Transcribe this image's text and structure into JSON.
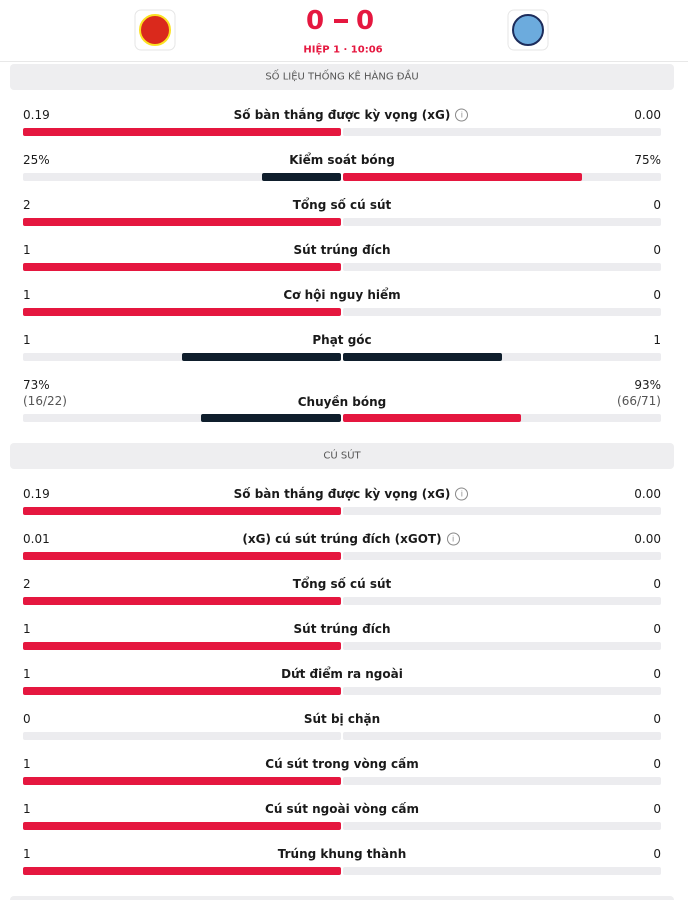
{
  "header": {
    "home_score": 0,
    "away_score": 0,
    "status": "HIỆP 1 · 10:06"
  },
  "colors": {
    "leading": "#e5173f",
    "other": "#0f1e2c",
    "track": "#ececef"
  },
  "sections": [
    {
      "title": "SỐ LIỆU THỐNG KÊ HÀNG ĐẦU",
      "rows": [
        {
          "name": "Số bàn thắng được kỳ vọng (xG)",
          "info": true,
          "home": 0.19,
          "away": {
            "value": 0,
            "label": "0.00"
          }
        },
        {
          "name": "Kiểm soát bóng",
          "home": {
            "value": 25,
            "label": "25%"
          },
          "away": {
            "value": 75,
            "label": "75%"
          }
        },
        {
          "name": "Tổng số cú sút",
          "home": 2,
          "away": 0
        },
        {
          "name": "Sút trúng đích",
          "home": 1,
          "away": 0
        },
        {
          "name": "Cơ hội nguy hiểm",
          "home": 1,
          "away": 0
        },
        {
          "name": "Phạt góc",
          "home": 1,
          "away": 1
        },
        {
          "name": "Chuyền bóng",
          "home": {
            "value": 73,
            "label": "73%"
          },
          "home_detail": "(16/22)",
          "away": {
            "value": 93,
            "label": "93%"
          },
          "away_detail": "(66/71)"
        }
      ]
    },
    {
      "title": "CÚ SÚT",
      "rows": [
        {
          "name": "Số bàn thắng được kỳ vọng (xG)",
          "info": true,
          "home": 0.19,
          "away": {
            "value": 0,
            "label": "0.00"
          }
        },
        {
          "name": "(xG) cú sút trúng đích (xGOT)",
          "info": true,
          "home": 0.01,
          "away": {
            "value": 0,
            "label": "0.00"
          }
        },
        {
          "name": "Tổng số cú sút",
          "home": 2,
          "away": 0
        },
        {
          "name": "Sút trúng đích",
          "home": 1,
          "away": 0
        },
        {
          "name": "Dứt điểm ra ngoài",
          "home": 1,
          "away": 0
        },
        {
          "name": "Sút bị chặn",
          "home": 0,
          "away": 0
        },
        {
          "name": "Cú sút trong vòng cấm",
          "home": 1,
          "away": 0
        },
        {
          "name": "Cú sút ngoài vòng cấm",
          "home": 1,
          "away": 0
        },
        {
          "name": "Trúng khung thành",
          "home": 1,
          "away": 0
        }
      ]
    }
  ]
}
